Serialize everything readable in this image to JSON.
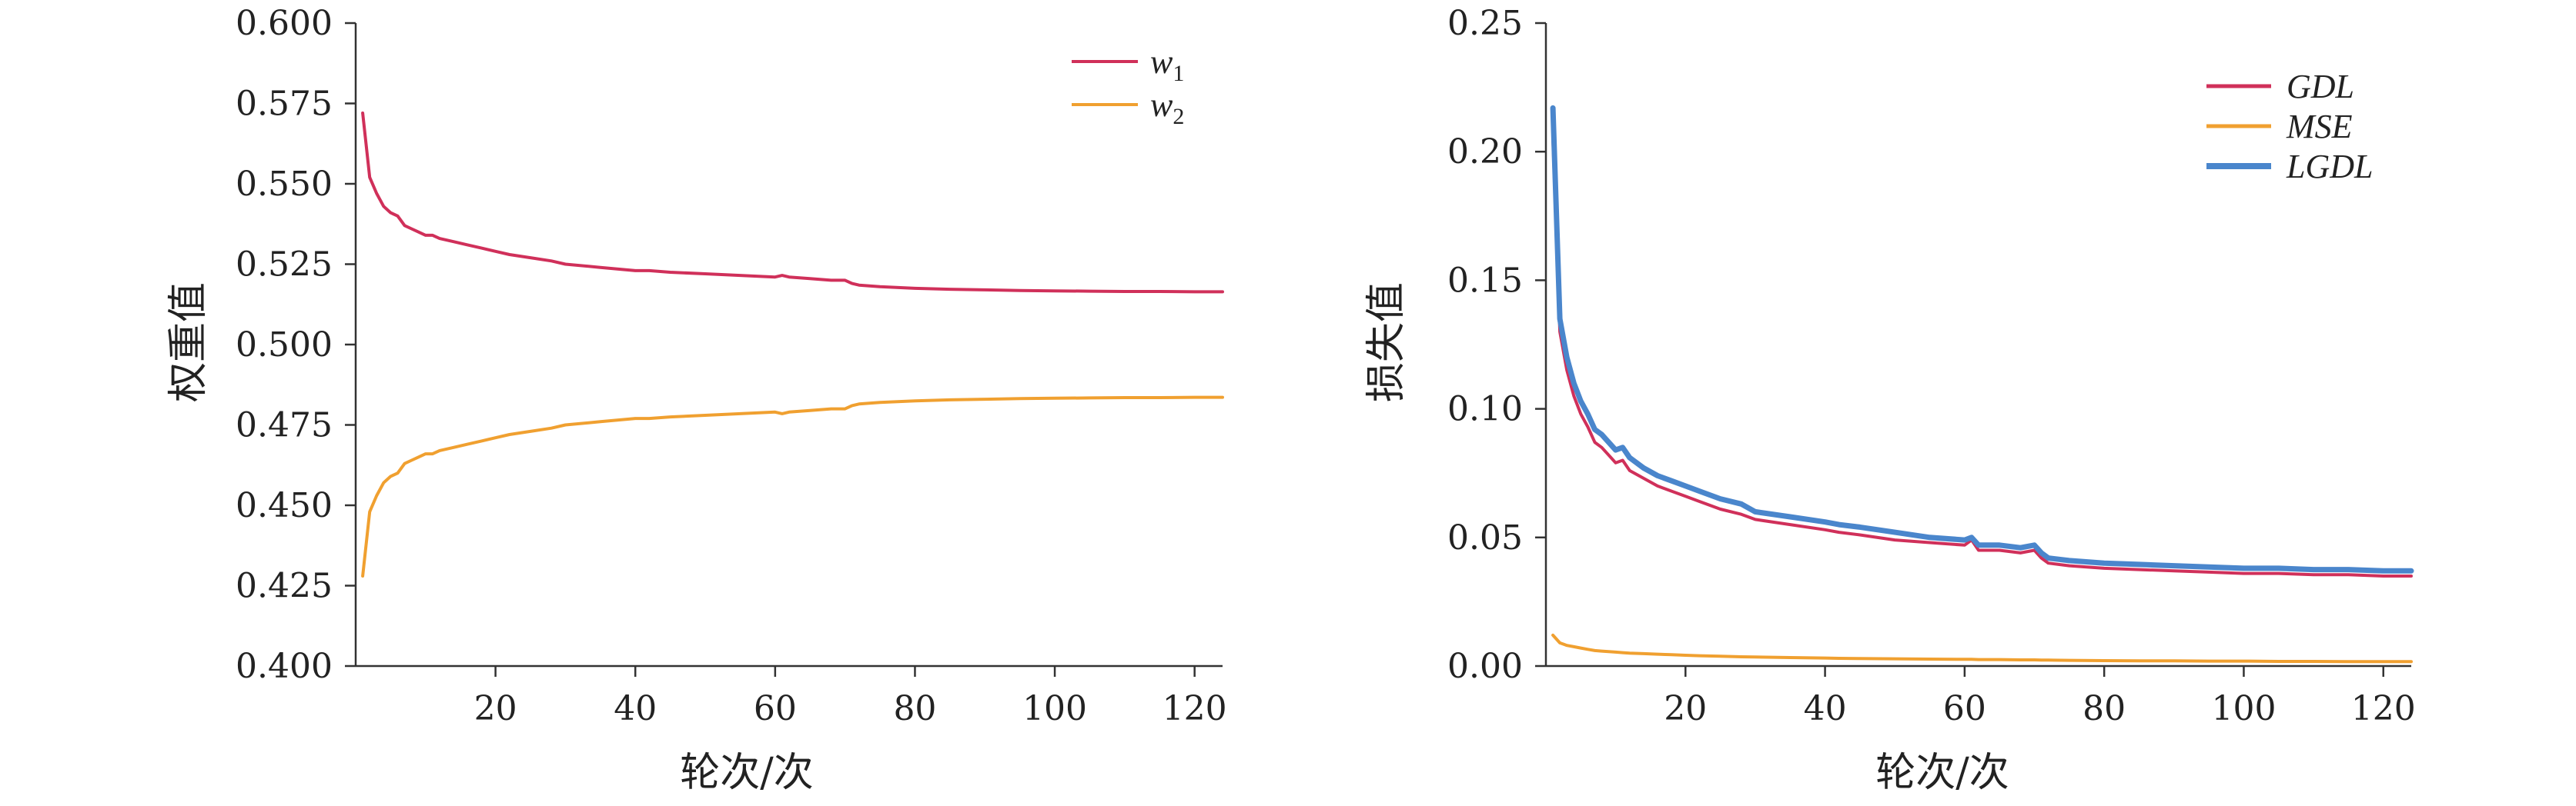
{
  "chart_data": [
    {
      "type": "line",
      "title": "",
      "xlabel": "轮次/次",
      "ylabel": "权重值",
      "xlim": [
        0,
        124
      ],
      "ylim": [
        0.4,
        0.6
      ],
      "xticks": [
        "20",
        "40",
        "60",
        "80",
        "100",
        "120"
      ],
      "yticks": [
        "0.400",
        "0.425",
        "0.450",
        "0.475",
        "0.500",
        "0.525",
        "0.550",
        "0.575",
        "0.600"
      ],
      "legend_position": "top-right",
      "grid": false,
      "x": [
        1,
        2,
        3,
        4,
        5,
        6,
        7,
        8,
        9,
        10,
        11,
        12,
        14,
        16,
        18,
        20,
        22,
        25,
        28,
        30,
        35,
        40,
        42,
        45,
        50,
        55,
        60,
        61,
        62,
        65,
        68,
        70,
        71,
        72,
        75,
        80,
        85,
        90,
        95,
        100,
        105,
        110,
        115,
        120,
        124
      ],
      "series": [
        {
          "name": "w1",
          "label_main": "w",
          "label_sub": "1",
          "color": "#d0305a",
          "values": [
            0.572,
            0.552,
            0.547,
            0.543,
            0.541,
            0.54,
            0.537,
            0.536,
            0.535,
            0.534,
            0.534,
            0.533,
            0.532,
            0.531,
            0.53,
            0.529,
            0.528,
            0.527,
            0.526,
            0.525,
            0.524,
            0.523,
            0.523,
            0.5225,
            0.522,
            0.5215,
            0.521,
            0.5215,
            0.521,
            0.5205,
            0.52,
            0.52,
            0.519,
            0.5185,
            0.518,
            0.5175,
            0.5172,
            0.517,
            0.5168,
            0.5167,
            0.5166,
            0.5165,
            0.5165,
            0.5164,
            0.5164
          ]
        },
        {
          "name": "w2",
          "label_main": "w",
          "label_sub": "2",
          "color": "#f0a030",
          "values": [
            0.428,
            0.448,
            0.453,
            0.457,
            0.459,
            0.46,
            0.463,
            0.464,
            0.465,
            0.466,
            0.466,
            0.467,
            0.468,
            0.469,
            0.47,
            0.471,
            0.472,
            0.473,
            0.474,
            0.475,
            0.476,
            0.477,
            0.477,
            0.4775,
            0.478,
            0.4785,
            0.479,
            0.4785,
            0.479,
            0.4795,
            0.48,
            0.48,
            0.481,
            0.4815,
            0.482,
            0.4825,
            0.4828,
            0.483,
            0.4832,
            0.4833,
            0.4834,
            0.4835,
            0.4835,
            0.4836,
            0.4836
          ]
        }
      ]
    },
    {
      "type": "line",
      "title": "",
      "xlabel": "轮次/次",
      "ylabel": "损失值",
      "xlim": [
        0,
        124
      ],
      "ylim": [
        0,
        0.25
      ],
      "xticks": [
        "20",
        "40",
        "60",
        "80",
        "100",
        "120"
      ],
      "yticks": [
        "0.00",
        "0.05",
        "0.10",
        "0.15",
        "0.20",
        "0.25"
      ],
      "legend_position": "top-right",
      "grid": false,
      "x": [
        1,
        2,
        3,
        4,
        5,
        6,
        7,
        8,
        9,
        10,
        11,
        12,
        14,
        16,
        18,
        20,
        22,
        25,
        28,
        30,
        35,
        40,
        42,
        45,
        50,
        55,
        60,
        61,
        62,
        65,
        68,
        70,
        71,
        72,
        75,
        80,
        85,
        90,
        95,
        100,
        105,
        110,
        115,
        120,
        124
      ],
      "series": [
        {
          "name": "GDL",
          "color": "#d0305a",
          "values": [
            0.205,
            0.13,
            0.115,
            0.105,
            0.098,
            0.093,
            0.087,
            0.085,
            0.082,
            0.079,
            0.08,
            0.076,
            0.073,
            0.07,
            0.068,
            0.066,
            0.064,
            0.061,
            0.059,
            0.057,
            0.055,
            0.053,
            0.052,
            0.051,
            0.049,
            0.048,
            0.047,
            0.049,
            0.045,
            0.045,
            0.044,
            0.045,
            0.042,
            0.04,
            0.039,
            0.038,
            0.0375,
            0.037,
            0.0365,
            0.036,
            0.036,
            0.0355,
            0.0355,
            0.035,
            0.035
          ]
        },
        {
          "name": "MSE",
          "color": "#f0a030",
          "values": [
            0.012,
            0.009,
            0.008,
            0.0075,
            0.007,
            0.0065,
            0.006,
            0.0058,
            0.0056,
            0.0054,
            0.0052,
            0.005,
            0.0048,
            0.0046,
            0.0044,
            0.0042,
            0.004,
            0.0038,
            0.0036,
            0.0035,
            0.0033,
            0.0031,
            0.003,
            0.0029,
            0.0028,
            0.0027,
            0.0026,
            0.0026,
            0.0025,
            0.0025,
            0.0024,
            0.0024,
            0.0023,
            0.0023,
            0.0022,
            0.0021,
            0.002,
            0.002,
            0.0019,
            0.0019,
            0.0018,
            0.0018,
            0.0017,
            0.0017,
            0.0017
          ]
        },
        {
          "name": "LGDL",
          "color": "#4a86cc",
          "values": [
            0.217,
            0.135,
            0.12,
            0.11,
            0.103,
            0.098,
            0.092,
            0.09,
            0.087,
            0.084,
            0.085,
            0.081,
            0.077,
            0.074,
            0.072,
            0.07,
            0.068,
            0.065,
            0.063,
            0.06,
            0.058,
            0.056,
            0.055,
            0.054,
            0.052,
            0.05,
            0.049,
            0.05,
            0.047,
            0.047,
            0.046,
            0.047,
            0.044,
            0.042,
            0.041,
            0.04,
            0.0395,
            0.039,
            0.0385,
            0.038,
            0.038,
            0.0375,
            0.0375,
            0.037,
            0.037
          ]
        }
      ]
    }
  ]
}
